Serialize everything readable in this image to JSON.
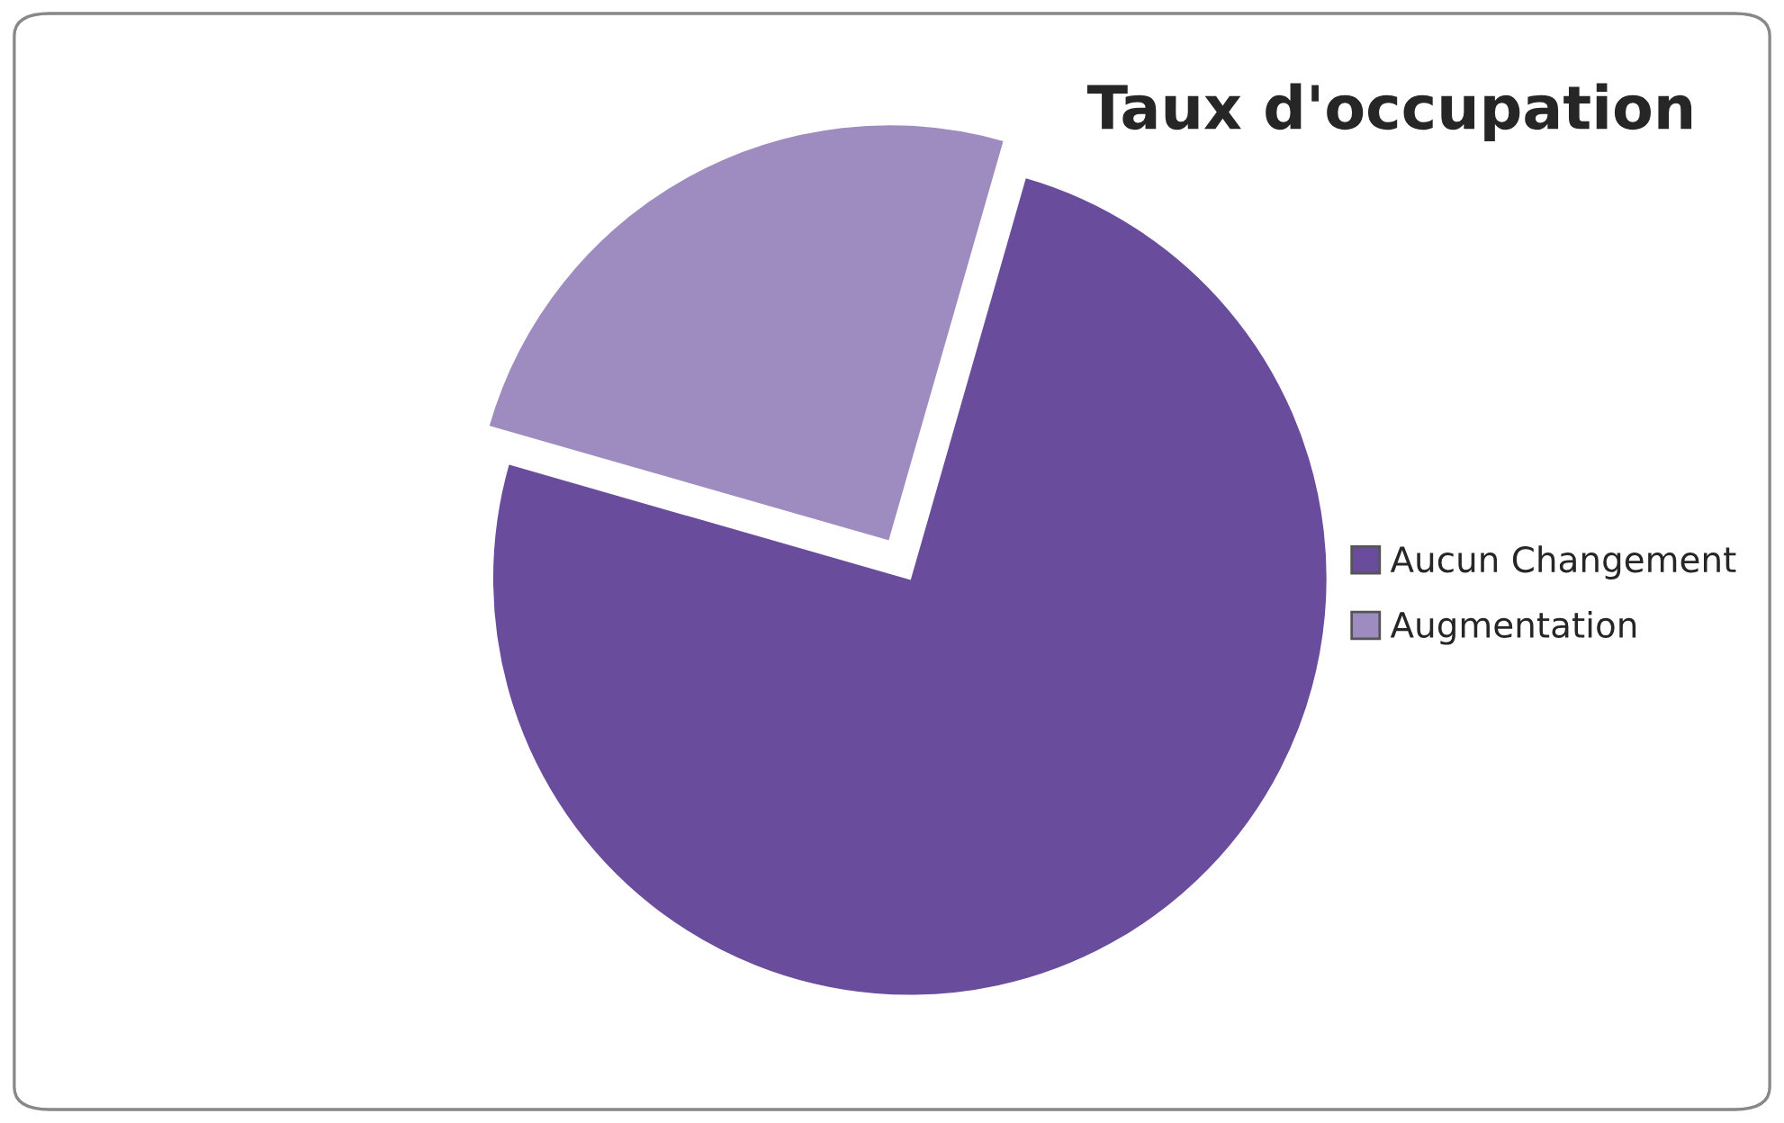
{
  "chart_data": {
    "type": "pie",
    "title": "Taux d'occupation",
    "categories": [
      "Aucun Changement",
      "Augmentation"
    ],
    "values": [
      75,
      25
    ],
    "colors": [
      "#6a4c9c",
      "#9e8cc0"
    ],
    "legend": "right"
  }
}
